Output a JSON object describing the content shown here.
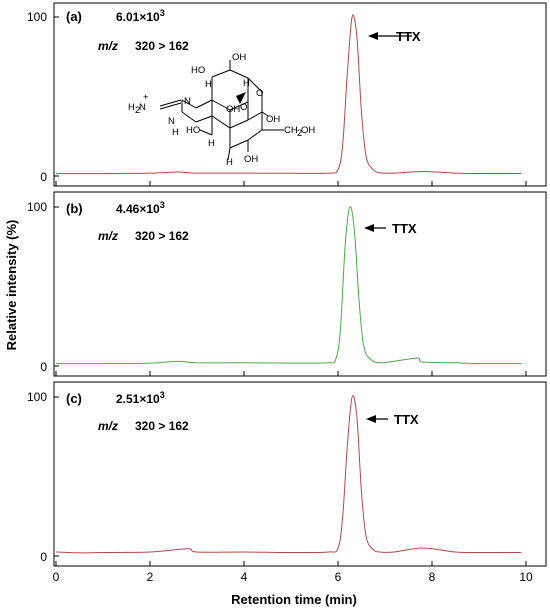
{
  "chart_data": {
    "type": "line",
    "xlabel": "Retention time (min)",
    "ylabel": "Relative intensity (%)",
    "xlim": [
      0,
      10
    ],
    "xticks": [
      "0",
      "2",
      "4",
      "6",
      "8",
      "10"
    ],
    "grid": false,
    "panels": [
      {
        "label": "(a)",
        "intensity": "6.01×10",
        "intensity_exp": "3",
        "mz_prefix": "m/z",
        "transition": "320 > 162",
        "peak_label": "TTX",
        "color": "#b5484a",
        "ylim": [
          0,
          100
        ],
        "yticks": [
          "100",
          "0"
        ],
        "series": {
          "x": [
            0,
            1,
            2,
            2.6,
            3,
            4,
            5,
            5.8,
            6.0,
            6.1,
            6.2,
            6.3,
            6.4,
            6.5,
            6.6,
            6.75,
            6.9,
            7.2,
            7.8,
            8.5,
            9,
            9.9
          ],
          "y": [
            1.5,
            1.5,
            1.8,
            2.5,
            1.8,
            1.8,
            1.7,
            1.8,
            4,
            20,
            65,
            100,
            88,
            40,
            12,
            4,
            2,
            1.8,
            2.8,
            1.8,
            1.6,
            1.6
          ]
        }
      },
      {
        "label": "(b)",
        "intensity": "4.46×10",
        "intensity_exp": "3",
        "mz_prefix": "m/z",
        "transition": "320 > 162",
        "peak_label": "TTX",
        "color": "#4fa84f",
        "ylim": [
          0,
          100
        ],
        "yticks": [
          "100",
          "0"
        ],
        "series": {
          "x": [
            0,
            1,
            2,
            2.6,
            3,
            4,
            5,
            5.8,
            5.95,
            6.05,
            6.15,
            6.25,
            6.35,
            6.45,
            6.55,
            6.7,
            6.9,
            7.2,
            7.7,
            7.8,
            8.5,
            9,
            9.9
          ],
          "y": [
            1.5,
            1.5,
            1.8,
            3,
            2,
            2,
            1.8,
            2,
            4,
            22,
            75,
            100,
            85,
            40,
            12,
            4,
            2,
            3,
            5,
            2.5,
            2,
            1.6,
            1.6
          ]
        }
      },
      {
        "label": "(c)",
        "intensity": "2.51×10",
        "intensity_exp": "3",
        "mz_prefix": "m/z",
        "transition": "320 > 162",
        "peak_label": "TTX",
        "color": "#b5484a",
        "ylim": [
          0,
          100
        ],
        "yticks": [
          "100",
          "0"
        ],
        "series": {
          "x": [
            0,
            0.5,
            1,
            2,
            2.8,
            3,
            4,
            5,
            5.8,
            6.0,
            6.1,
            6.2,
            6.3,
            6.4,
            6.5,
            6.6,
            6.75,
            6.9,
            7.2,
            7.8,
            8.5,
            9,
            9.9
          ],
          "y": [
            2.5,
            2,
            2.2,
            2.5,
            4.5,
            2.5,
            2.5,
            2.2,
            2.5,
            5,
            25,
            70,
            100,
            88,
            40,
            12,
            4,
            2.5,
            2.5,
            5,
            2.5,
            2.2,
            2.2
          ]
        }
      }
    ]
  },
  "structure": {
    "atoms": [
      "HO",
      "OH",
      "H",
      "H",
      "N",
      "OH",
      "O",
      "O⁻",
      "H₂N",
      "+",
      "N",
      "H",
      "HO",
      "H",
      "CH₂OH",
      "OH"
    ]
  }
}
